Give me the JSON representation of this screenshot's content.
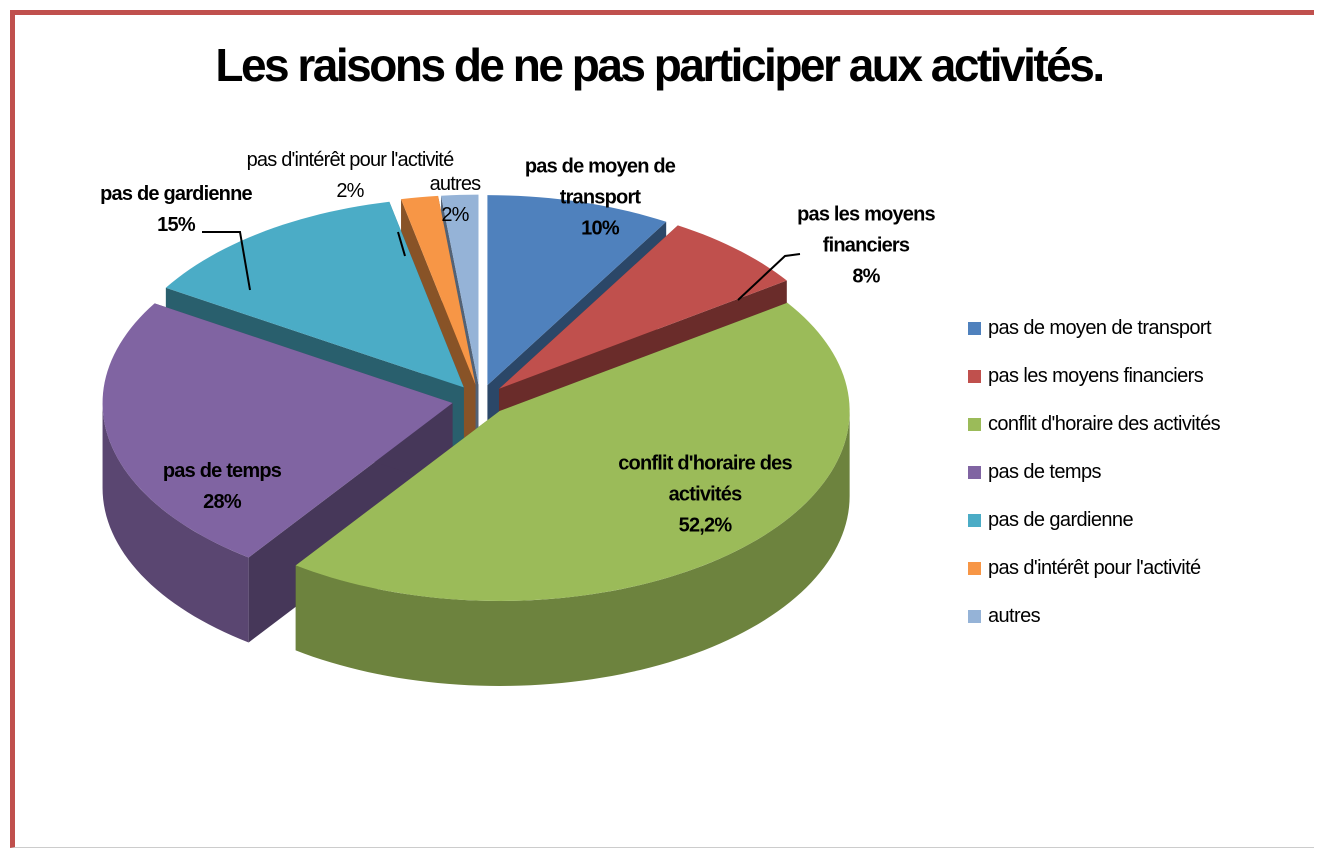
{
  "chart_data": {
    "type": "pie3d",
    "title": "Les raisons de ne pas participer aux activités.",
    "categories": [
      "pas de moyen de transport",
      "pas les moyens financiers",
      "conflit d'horaire des activités",
      "pas de temps",
      "pas de gardienne",
      "pas d'intérêt pour l'activité",
      "autres"
    ],
    "values": [
      10,
      8,
      52.2,
      28,
      15,
      2,
      2
    ],
    "value_labels": [
      "10%",
      "8%",
      "52,2%",
      "28%",
      "15%",
      "2%",
      "2%"
    ],
    "colors": [
      "#4f81bd",
      "#c0504d",
      "#9bbb59",
      "#8064a2",
      "#4bacc6",
      "#f79646",
      "#95b3d7"
    ],
    "legend": "right"
  }
}
